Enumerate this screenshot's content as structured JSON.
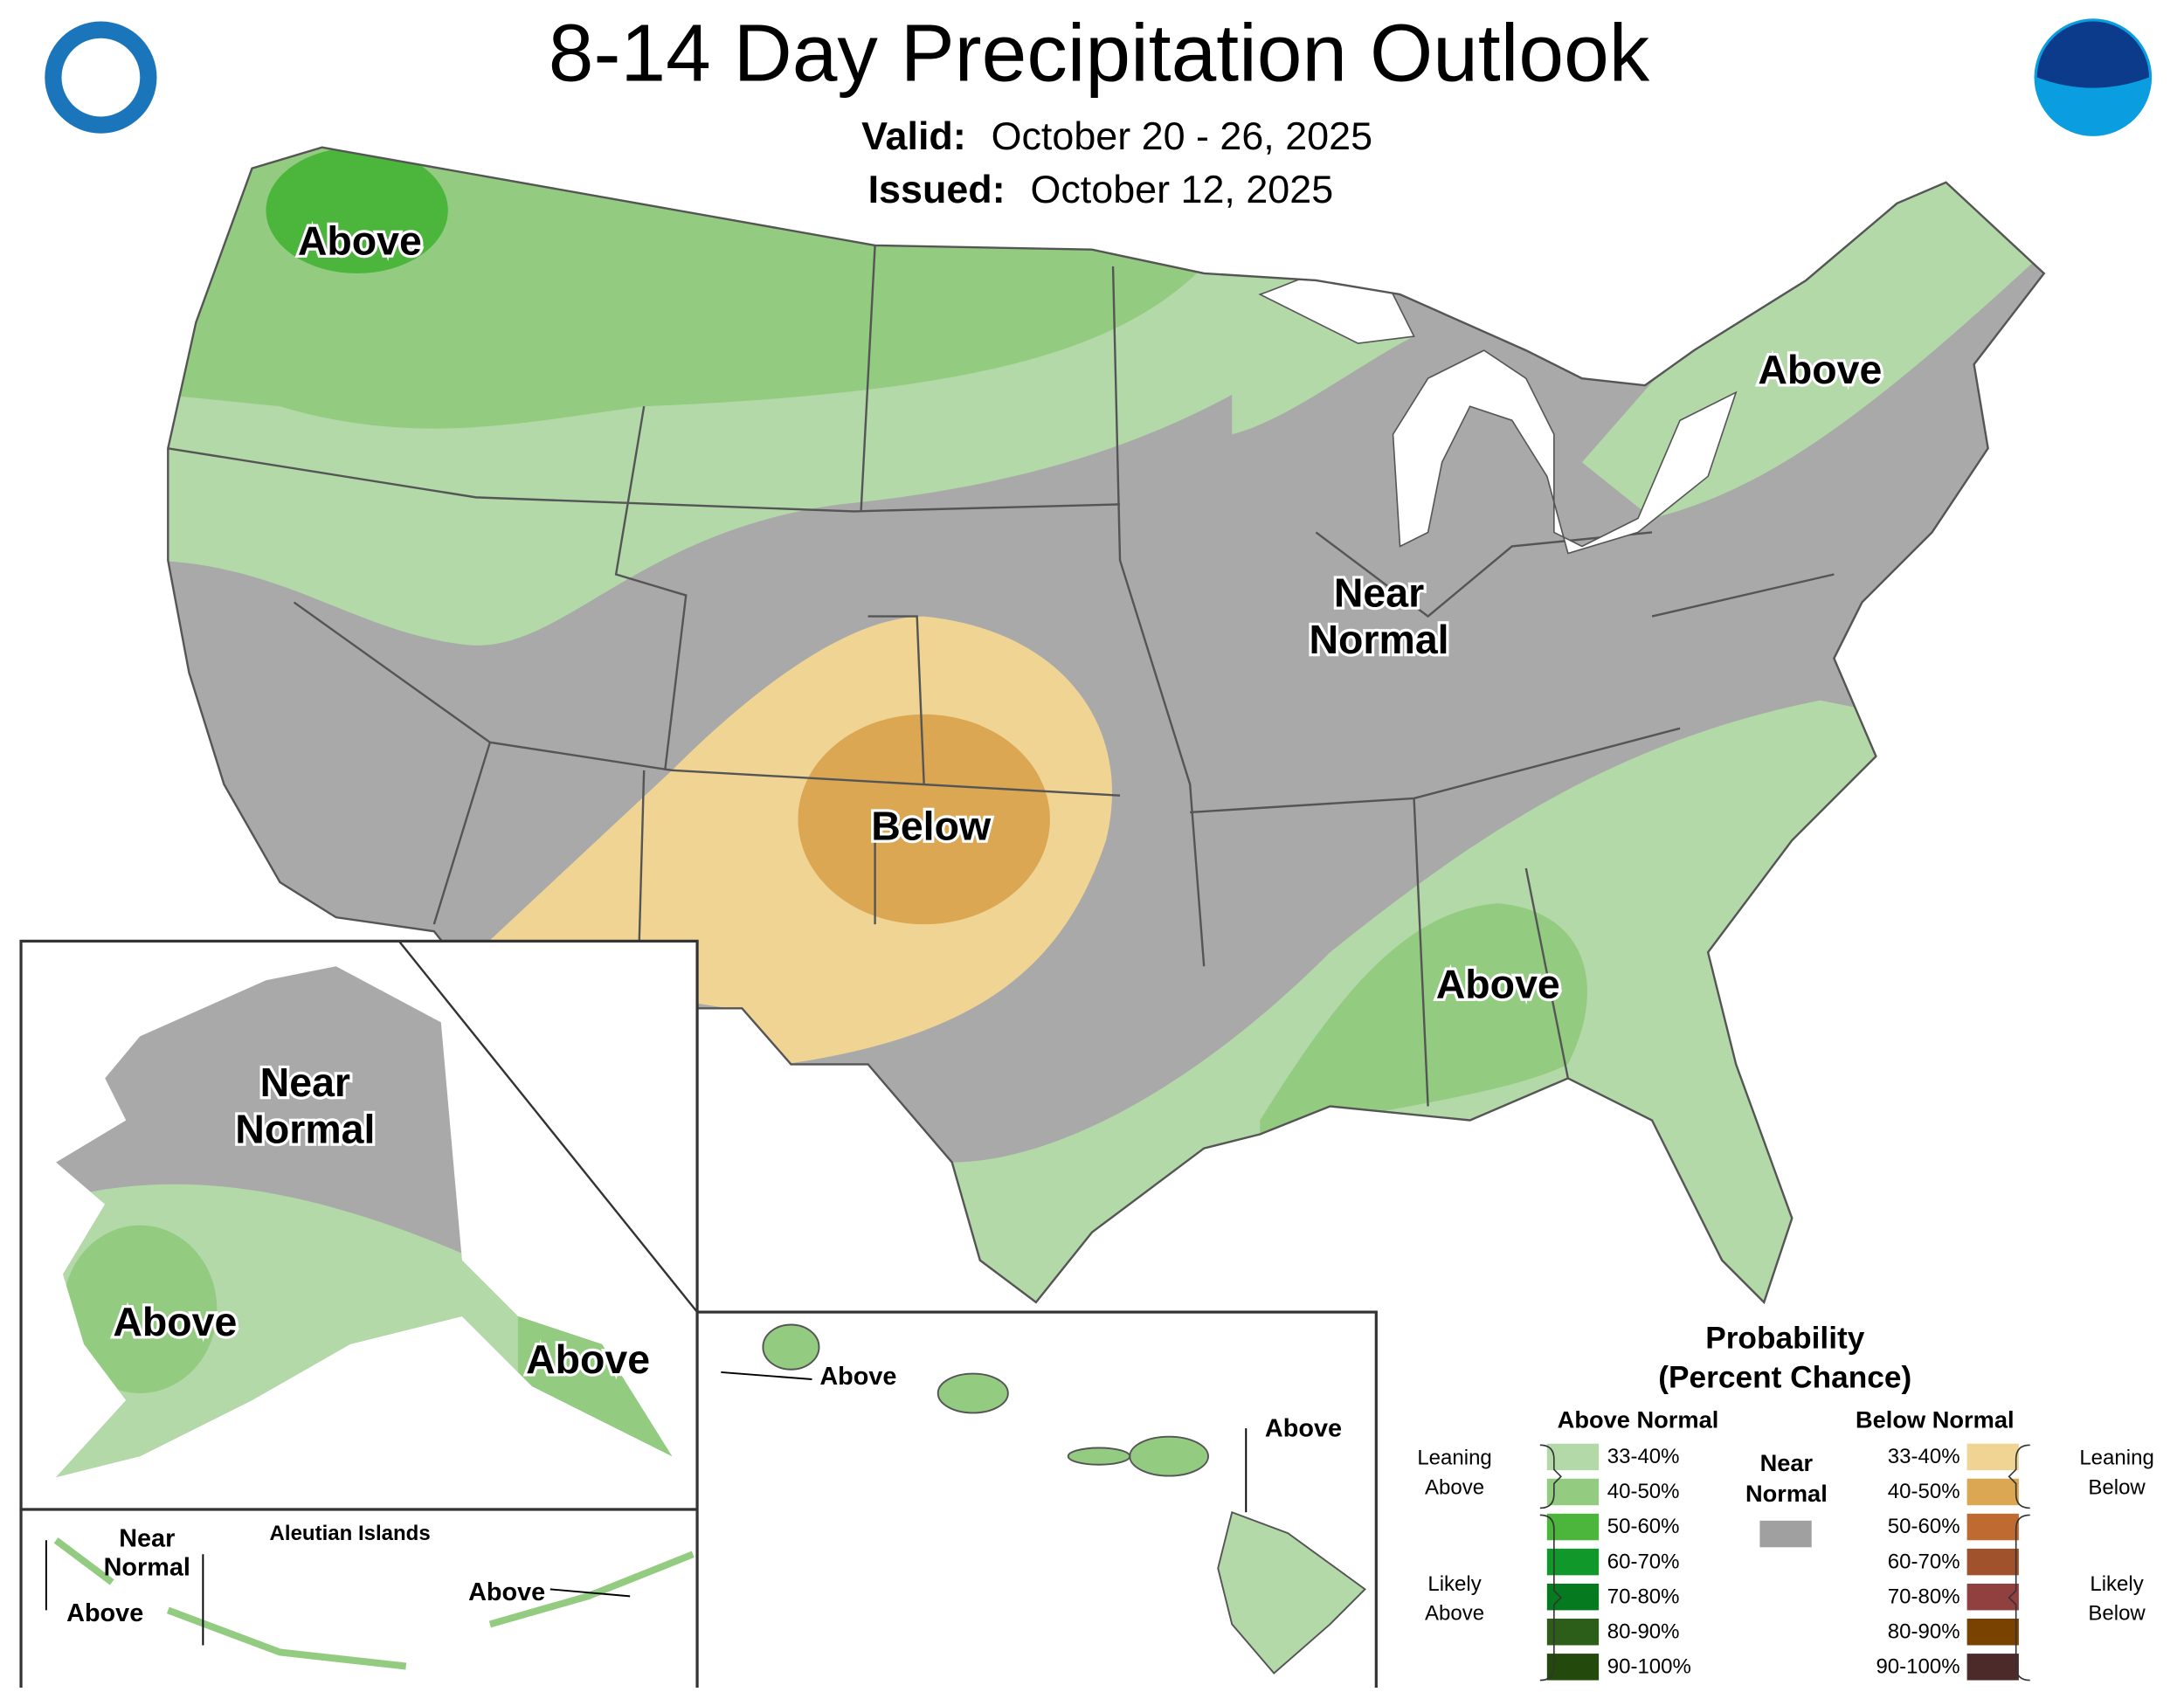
{
  "header": {
    "title": "8-14 Day Precipitation Outlook",
    "valid_label": "Valid:",
    "valid": "October 20 - 26, 2025",
    "issued_label": "Issued:",
    "issued": "October 12, 2025"
  },
  "conus": {
    "labels": [
      [
        "Above"
      ],
      [
        "Below"
      ],
      [
        "Near",
        "Normal"
      ],
      [
        "Above"
      ],
      [
        "Above"
      ]
    ]
  },
  "alaska": {
    "labels": [
      [
        "Near",
        "Normal"
      ],
      [
        "Above"
      ],
      [
        "Above"
      ]
    ]
  },
  "hawaii": {
    "labels": [
      [
        "Above"
      ],
      [
        "Above"
      ]
    ]
  },
  "aleutians": {
    "title": "Aleutian Islands",
    "labels": [
      [
        "Near",
        "Normal"
      ],
      [
        "Above"
      ],
      [
        "Above"
      ]
    ]
  },
  "legend": {
    "title": [
      "Probability",
      "(Percent Chance)"
    ],
    "above_header": "Above Normal",
    "below_header": "Below Normal",
    "near": [
      "Near",
      "Normal"
    ],
    "near_color": "#a0a0a0",
    "above_items": [
      {
        "label": "33-40%",
        "color": "#b3d9a8"
      },
      {
        "label": "40-50%",
        "color": "#93cc80"
      },
      {
        "label": "50-60%",
        "color": "#4cb53c"
      },
      {
        "label": "60-70%",
        "color": "#10992a"
      },
      {
        "label": "70-80%",
        "color": "#067a1e"
      },
      {
        "label": "80-90%",
        "color": "#2d5e19"
      },
      {
        "label": "90-100%",
        "color": "#234a0c"
      }
    ],
    "below_items": [
      {
        "label": "33-40%",
        "color": "#f0d494"
      },
      {
        "label": "40-50%",
        "color": "#dba752"
      },
      {
        "label": "50-60%",
        "color": "#bf6a30"
      },
      {
        "label": "60-70%",
        "color": "#a0522d"
      },
      {
        "label": "70-80%",
        "color": "#914040"
      },
      {
        "label": "80-90%",
        "color": "#7a4200"
      },
      {
        "label": "90-100%",
        "color": "#4d2a2a"
      }
    ],
    "leaning_above": [
      "Leaning",
      "Above"
    ],
    "likely_above": [
      "Likely",
      "Above"
    ],
    "leaning_below": [
      "Leaning",
      "Below"
    ],
    "likely_below": [
      "Likely",
      "Below"
    ]
  }
}
